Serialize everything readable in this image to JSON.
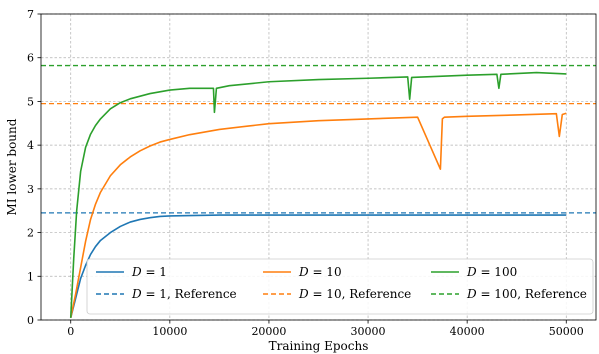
{
  "chart_data": {
    "type": "line",
    "title": "",
    "xlabel": "Training Epochs",
    "ylabel": "MI lower bound",
    "xlim": [
      -3000,
      53000
    ],
    "ylim": [
      0,
      7
    ],
    "xticks": [
      0,
      10000,
      20000,
      30000,
      40000,
      50000
    ],
    "yticks": [
      0,
      1,
      2,
      3,
      4,
      5,
      6,
      7
    ],
    "grid": true,
    "legend_placement": "lower-center",
    "series": [
      {
        "name": "D = 1",
        "d": "1",
        "color": "#1f77b4",
        "style": "solid",
        "x": [
          0,
          500,
          1000,
          1500,
          2000,
          2500,
          3000,
          4000,
          5000,
          6000,
          7000,
          8000,
          9000,
          10000,
          12000,
          15000,
          20000,
          30000,
          40000,
          50000
        ],
        "y": [
          0.05,
          0.5,
          0.95,
          1.25,
          1.5,
          1.68,
          1.82,
          2.0,
          2.14,
          2.24,
          2.3,
          2.34,
          2.37,
          2.38,
          2.39,
          2.4,
          2.4,
          2.4,
          2.4,
          2.4
        ]
      },
      {
        "name": "D = 1, Reference",
        "d": "1",
        "suffix": ", Reference",
        "color": "#1f77b4",
        "style": "dashed",
        "value": 2.45
      },
      {
        "name": "D = 10",
        "d": "10",
        "color": "#ff7f0e",
        "style": "solid",
        "x": [
          0,
          500,
          1000,
          1500,
          2000,
          2500,
          3000,
          4000,
          5000,
          6000,
          7000,
          8000,
          9000,
          10000,
          12000,
          15000,
          18000,
          20000,
          25000,
          30000,
          35000,
          37300,
          37500,
          37700,
          40000,
          45000,
          49000,
          49300,
          49600,
          50000
        ],
        "y": [
          0.05,
          0.6,
          1.2,
          1.8,
          2.3,
          2.65,
          2.92,
          3.3,
          3.55,
          3.73,
          3.87,
          3.98,
          4.07,
          4.13,
          4.24,
          4.36,
          4.44,
          4.49,
          4.56,
          4.6,
          4.64,
          3.45,
          4.6,
          4.64,
          4.66,
          4.69,
          4.72,
          4.2,
          4.7,
          4.73
        ]
      },
      {
        "name": "D = 10, Reference",
        "d": "10",
        "suffix": ", Reference",
        "color": "#ff7f0e",
        "style": "dashed",
        "value": 4.95
      },
      {
        "name": "D = 100",
        "d": "100",
        "color": "#2ca02c",
        "style": "solid",
        "x": [
          0,
          300,
          600,
          1000,
          1500,
          2000,
          2500,
          3000,
          4000,
          5000,
          6000,
          7000,
          8000,
          10000,
          12000,
          14400,
          14500,
          14700,
          16000,
          20000,
          25000,
          30000,
          34000,
          34200,
          34400,
          40000,
          43000,
          43200,
          43400,
          47000,
          50000
        ],
        "y": [
          0.05,
          1.4,
          2.5,
          3.4,
          3.95,
          4.25,
          4.45,
          4.6,
          4.83,
          4.97,
          5.06,
          5.12,
          5.18,
          5.26,
          5.3,
          5.3,
          4.75,
          5.3,
          5.36,
          5.45,
          5.5,
          5.53,
          5.56,
          5.05,
          5.55,
          5.6,
          5.62,
          5.3,
          5.62,
          5.66,
          5.63
        ]
      },
      {
        "name": "D = 100, Reference",
        "d": "100",
        "suffix": ", Reference",
        "color": "#2ca02c",
        "style": "dashed",
        "value": 5.82
      }
    ]
  }
}
